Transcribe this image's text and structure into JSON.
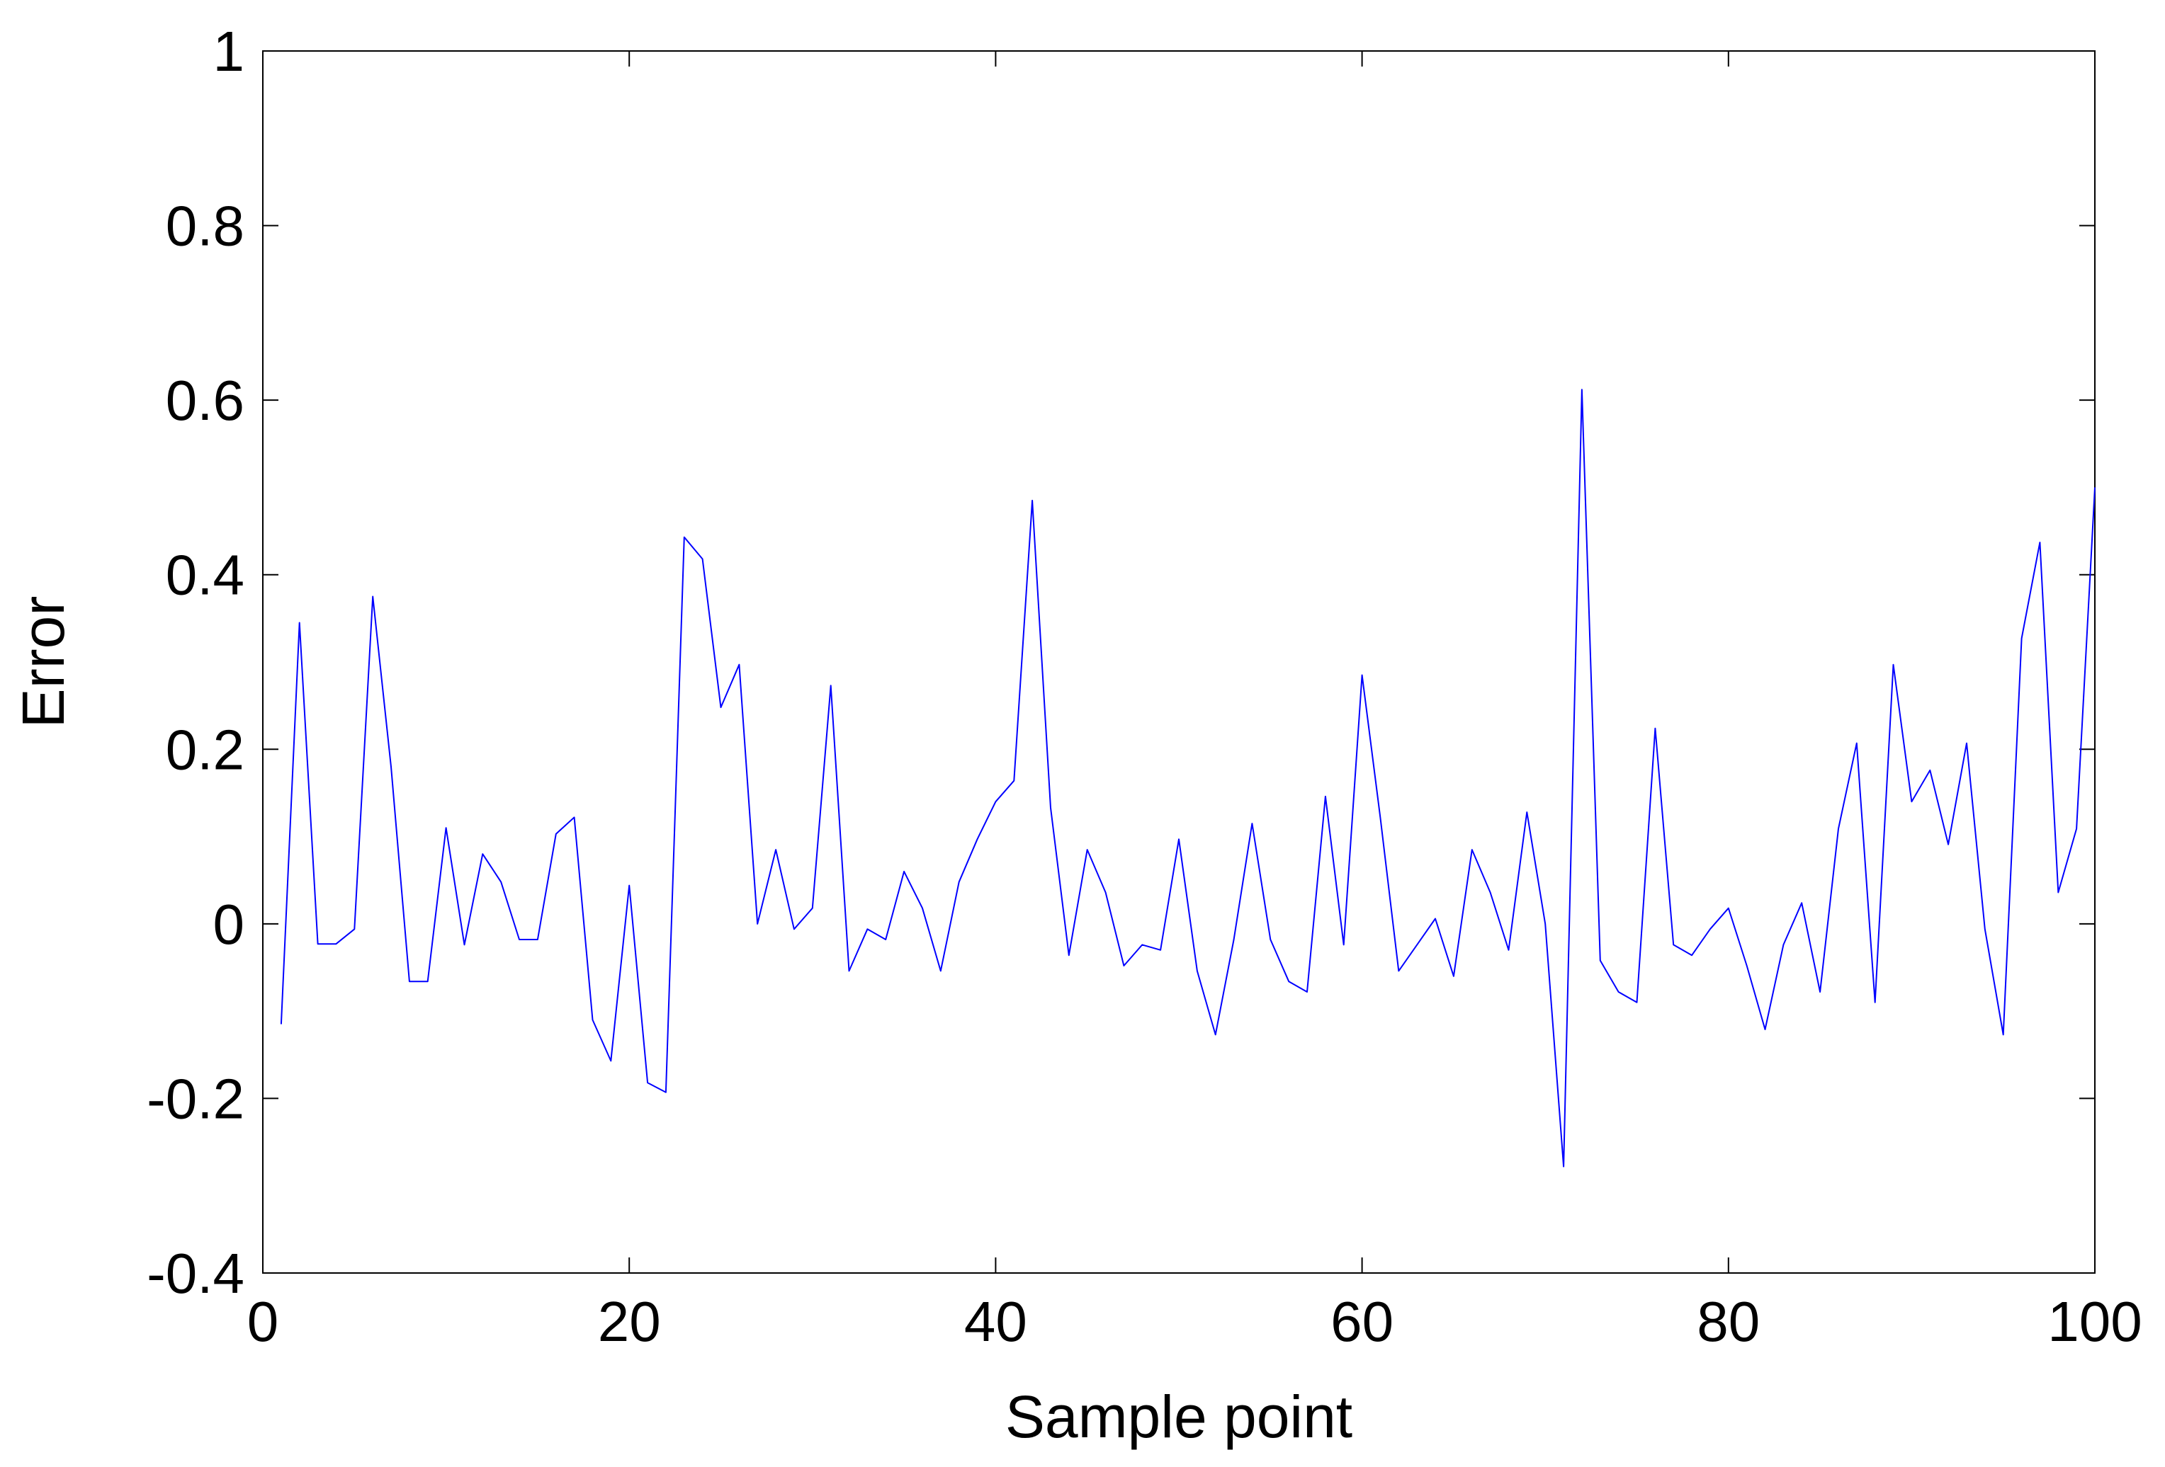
{
  "chart_data": {
    "type": "line",
    "title": "",
    "xlabel": "Sample point",
    "ylabel": "Error",
    "xlim": [
      0,
      100
    ],
    "ylim": [
      -0.4,
      1
    ],
    "xticks": [
      0,
      20,
      40,
      60,
      80,
      100
    ],
    "xtick_labels": [
      "0",
      "20",
      "40",
      "60",
      "80",
      "100"
    ],
    "yticks": [
      -0.4,
      -0.2,
      0,
      0.2,
      0.4,
      0.6,
      0.8,
      1
    ],
    "ytick_labels": [
      "-0.4",
      "-0.2",
      "0",
      "0.2",
      "0.4",
      "0.6",
      "0.8",
      "1"
    ],
    "grid": false,
    "colors": {
      "line": "#0000ff",
      "axes": "#000000",
      "background": "#ffffff"
    },
    "series": [
      {
        "x": [
          1,
          2,
          3,
          4,
          5,
          6,
          7,
          8,
          9,
          10,
          11,
          12,
          13,
          14,
          15,
          16,
          17,
          18,
          19,
          20,
          21,
          22,
          23,
          24,
          25,
          26,
          27,
          28,
          29,
          30,
          31,
          32,
          33,
          34,
          35,
          36,
          37,
          38,
          39,
          40,
          41,
          42,
          43,
          44,
          45,
          46,
          47,
          48,
          49,
          50,
          51,
          52,
          53,
          54,
          55,
          56,
          57,
          58,
          59,
          60,
          61,
          62,
          63,
          64,
          65,
          66,
          67,
          68,
          69,
          70,
          71,
          72,
          73,
          74,
          75,
          76,
          77,
          78,
          79,
          80,
          81,
          82,
          83,
          84,
          85,
          86,
          87,
          88,
          89,
          90,
          91,
          92,
          93,
          94,
          95,
          96,
          97,
          98,
          99,
          100
        ],
        "values": [
          -0.115,
          0.345,
          -0.023,
          -0.023,
          -0.006,
          0.375,
          0.18,
          -0.066,
          -0.066,
          0.11,
          -0.024,
          0.08,
          0.048,
          -0.018,
          -0.018,
          0.103,
          0.122,
          -0.11,
          -0.157,
          0.044,
          -0.182,
          -0.193,
          0.443,
          0.418,
          0.248,
          0.297,
          0,
          0.085,
          -0.006,
          0.018,
          0.273,
          -0.054,
          -0.006,
          -0.018,
          0.06,
          0.018,
          -0.054,
          0.048,
          0.097,
          0.14,
          0.164,
          0.485,
          0.133,
          -0.036,
          0.085,
          0.036,
          -0.048,
          -0.024,
          -0.03,
          0.097,
          -0.054,
          -0.127,
          -0.018,
          0.115,
          -0.018,
          -0.066,
          -0.078,
          0.146,
          -0.024,
          0.285,
          0.121,
          -0.054,
          -0.024,
          0.006,
          -0.06,
          0.085,
          0.036,
          -0.03,
          0.128,
          0,
          -0.278,
          0.612,
          -0.042,
          -0.078,
          -0.09,
          0.224,
          -0.024,
          -0.036,
          -0.006,
          0.018,
          -0.048,
          -0.121,
          -0.024,
          0.024,
          -0.078,
          0.109,
          0.207,
          -0.09,
          0.297,
          0.14,
          0.176,
          0.091,
          0.207,
          -0.006,
          -0.127,
          0.327,
          0.437,
          0.036,
          0.109,
          0.5
        ]
      }
    ]
  }
}
